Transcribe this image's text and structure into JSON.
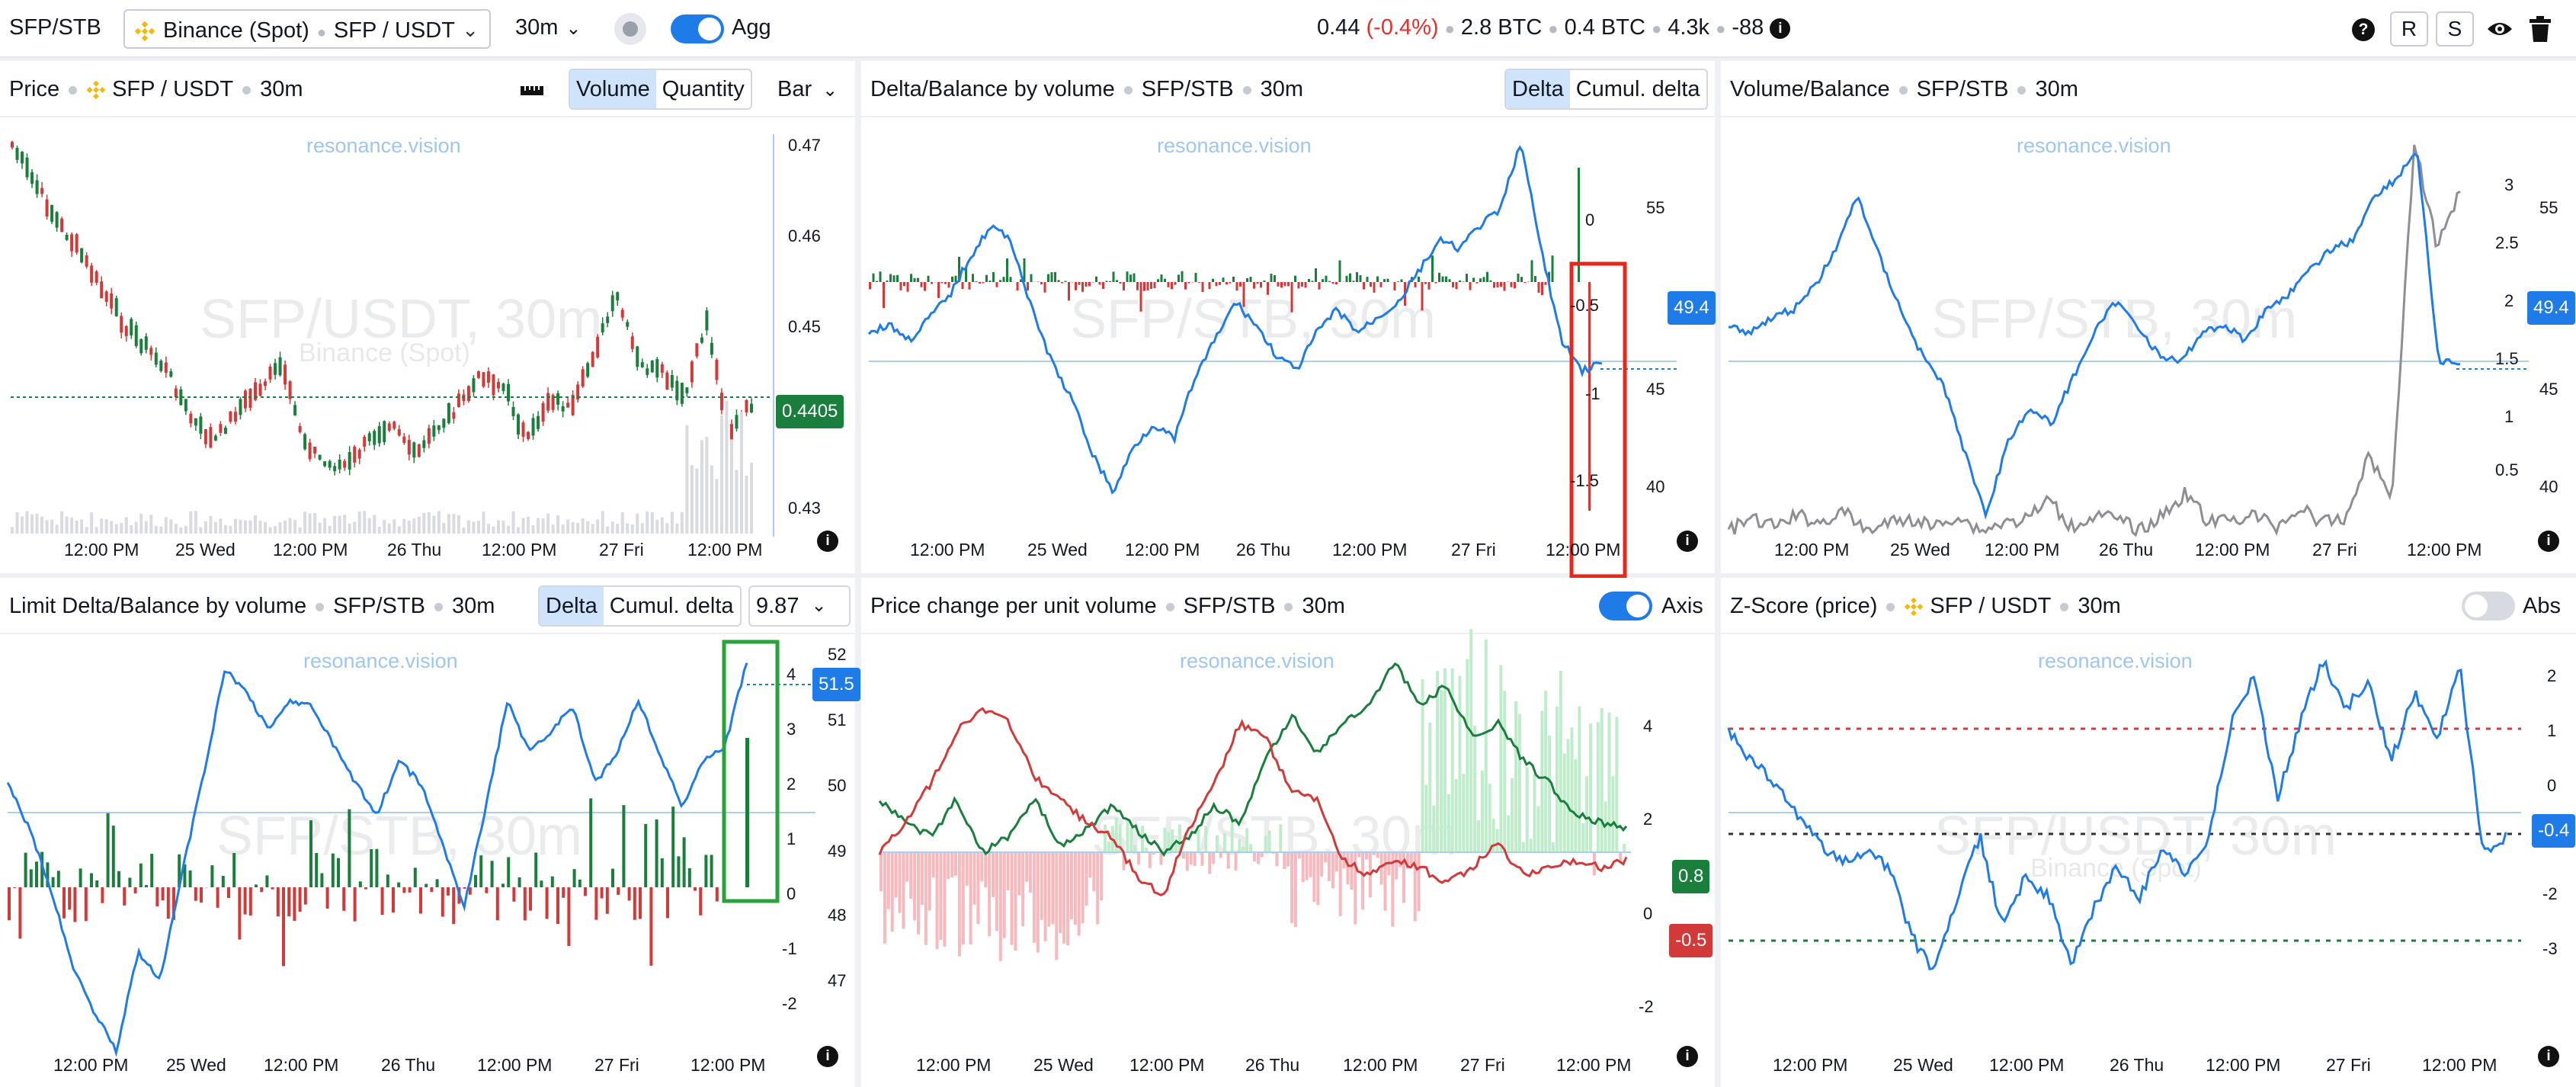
{
  "toolbar": {
    "ticker": "SFP/STB",
    "exchange": "Binance (Spot)",
    "pair": "SFP / USDT",
    "timeframe": "30m",
    "agg_label": "Agg",
    "price": "0.44",
    "change": "(-0.4%)",
    "stat1": "2.8 BTC",
    "stat2": "0.4 BTC",
    "stat3": "4.3k",
    "stat4": "-88",
    "btn_r": "R",
    "btn_s": "S",
    "help": "?",
    "info": "i"
  },
  "brand": "resonance.vision",
  "panels": {
    "price": {
      "title": "Price",
      "pair": "SFP / USDT",
      "tf": "30m",
      "seg": [
        "Volume",
        "Quantity"
      ],
      "bar_select": "Bar",
      "watermark": "SFP/USDT, 30m",
      "watermark_sub": "Binance (Spot)",
      "y_ticks": [
        "0.47",
        "0.46",
        "0.45",
        "0.44",
        "0.43"
      ],
      "last_badge": "0.4405",
      "x_ticks": [
        "12:00 PM",
        "25 Wed",
        "12:00 PM",
        "26 Thu",
        "12:00 PM",
        "27 Fri",
        "12:00 PM"
      ]
    },
    "delta": {
      "title": "Delta/Balance by volume",
      "pair": "SFP/STB",
      "tf": "30m",
      "seg": [
        "Delta",
        "Cumul. delta"
      ],
      "watermark": "SFP/STB, 30m",
      "y_left": [
        "0",
        "-0.5",
        "-1",
        "-1.5"
      ],
      "y_right": [
        "55",
        "50",
        "45",
        "40"
      ],
      "badge": "49.4",
      "x_ticks": [
        "12:00 PM",
        "25 Wed",
        "12:00 PM",
        "26 Thu",
        "12:00 PM",
        "27 Fri",
        "12:00 PM"
      ]
    },
    "volbal": {
      "title": "Volume/Balance",
      "pair": "SFP/STB",
      "tf": "30m",
      "watermark": "SFP/STB, 30m",
      "y_left": [
        "3",
        "2.5",
        "2",
        "1.5",
        "1",
        "0.5"
      ],
      "y_right": [
        "55",
        "50",
        "45",
        "40"
      ],
      "badge": "49.4",
      "x_ticks": [
        "12:00 PM",
        "25 Wed",
        "12:00 PM",
        "26 Thu",
        "12:00 PM",
        "27 Fri",
        "12:00 PM"
      ]
    },
    "limit": {
      "title": "Limit Delta/Balance by volume",
      "pair": "SFP/STB",
      "tf": "30m",
      "seg": [
        "Delta",
        "Cumul. delta"
      ],
      "select_value": "9.87",
      "watermark": "SFP/STB, 30m",
      "y_left": [
        "4",
        "3",
        "2",
        "1",
        "0",
        "-1",
        "-2"
      ],
      "y_right": [
        "52",
        "51",
        "50",
        "49",
        "48",
        "47"
      ],
      "badge": "51.5",
      "x_ticks": [
        "12:00 PM",
        "25 Wed",
        "12:00 PM",
        "26 Thu",
        "12:00 PM",
        "27 Fri",
        "12:00 PM"
      ]
    },
    "pcpuv": {
      "title": "Price change per unit volume",
      "pair": "SFP/STB",
      "tf": "30m",
      "axis_label": "Axis",
      "watermark": "SFP/STB, 30m",
      "y_ticks": [
        "4",
        "2",
        "0",
        "-2"
      ],
      "badge_green": "0.8",
      "badge_red": "-0.5",
      "x_ticks": [
        "12:00 PM",
        "25 Wed",
        "12:00 PM",
        "26 Thu",
        "12:00 PM",
        "27 Fri",
        "12:00 PM"
      ]
    },
    "zscore": {
      "title": "Z-Score (price)",
      "pair": "SFP / USDT",
      "tf": "30m",
      "abs_label": "Abs",
      "watermark": "SFP/USDT, 30m",
      "watermark_sub": "Binance (Spot)",
      "y_ticks": [
        "2",
        "1",
        "0",
        "-1",
        "-2",
        "-3"
      ],
      "badge": "-0.4",
      "x_ticks": [
        "12:00 PM",
        "25 Wed",
        "12:00 PM",
        "26 Thu",
        "12:00 PM",
        "27 Fri",
        "12:00 PM"
      ]
    }
  },
  "colors": {
    "up": "#1a7f3c",
    "down": "#d23a3a",
    "line": "#1e7be8",
    "grey": "#8d8f94",
    "highlight_red": "#e8271a",
    "highlight_green": "#27a33a"
  }
}
